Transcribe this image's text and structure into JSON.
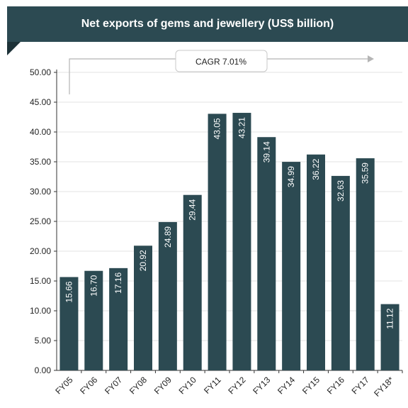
{
  "chart_data": {
    "type": "bar",
    "title": "Net exports of gems and jewellery (US$ billion)",
    "categories": [
      "FY05",
      "FY06",
      "FY07",
      "FY08",
      "FY09",
      "FY10",
      "FY11",
      "FY12",
      "FY13",
      "FY14",
      "FY15",
      "FY16",
      "FY17",
      "FY18*"
    ],
    "values": [
      15.66,
      16.7,
      17.16,
      20.92,
      24.89,
      29.44,
      43.05,
      43.21,
      39.14,
      34.99,
      36.22,
      32.63,
      35.59,
      11.12
    ],
    "value_labels": [
      "15.66",
      "16.70",
      "17.16",
      "20.92",
      "24.89",
      "29.44",
      "43.05",
      "43.21",
      "39.14",
      "34.99",
      "36.22",
      "32.63",
      "35.59",
      "11.12"
    ],
    "yticks": [
      "0.00",
      "5.00",
      "10.00",
      "15.00",
      "20.00",
      "25.00",
      "30.00",
      "35.00",
      "40.00",
      "45.00",
      "50.00"
    ],
    "ylim": [
      0,
      50
    ],
    "annotation": "CAGR 7.01%",
    "grid": true,
    "bar_color": "#2c4a52"
  }
}
